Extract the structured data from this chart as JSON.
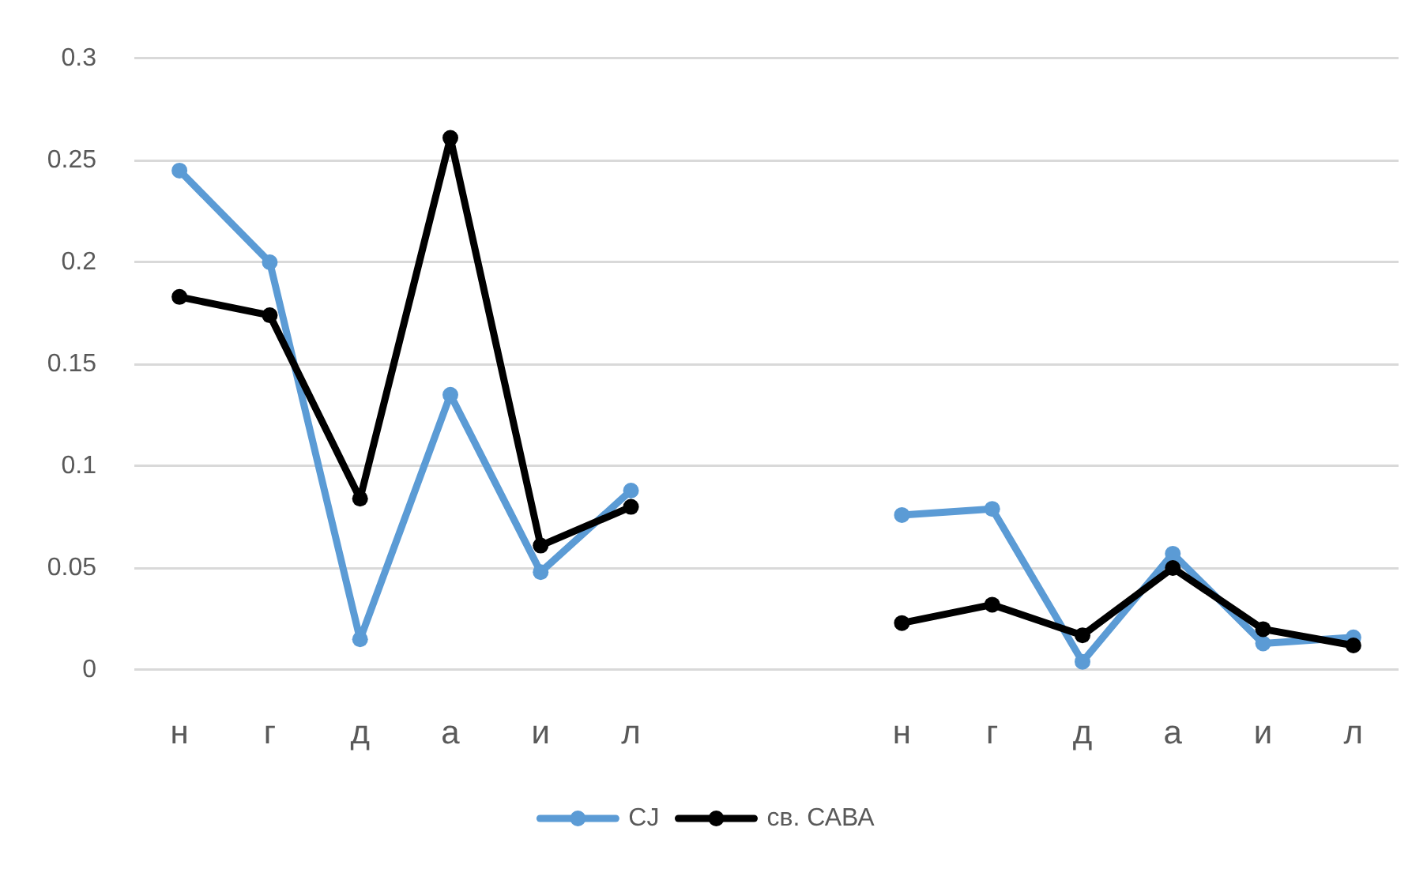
{
  "chart_data": {
    "type": "line",
    "categories": [
      "н",
      "г",
      "д",
      "а",
      "и",
      "л",
      null,
      null,
      "н",
      "г",
      "д",
      "а",
      "и",
      "л"
    ],
    "series": [
      {
        "name": "CJ",
        "color": "#5b9bd5",
        "values": [
          0.245,
          0.2,
          0.015,
          0.135,
          0.048,
          0.088,
          null,
          null,
          0.076,
          0.079,
          0.004,
          0.057,
          0.013,
          0.016
        ]
      },
      {
        "name": "св. САВА",
        "color": "#000000",
        "values": [
          0.183,
          0.174,
          0.084,
          0.261,
          0.061,
          0.08,
          null,
          null,
          0.023,
          0.032,
          0.017,
          0.05,
          0.02,
          0.012
        ]
      }
    ],
    "ylim": [
      0,
      0.3
    ],
    "yticks": [
      0,
      0.05,
      0.1,
      0.15,
      0.2,
      0.25,
      0.3
    ],
    "grid": "y",
    "legend": "bottom",
    "marker": "circle"
  }
}
